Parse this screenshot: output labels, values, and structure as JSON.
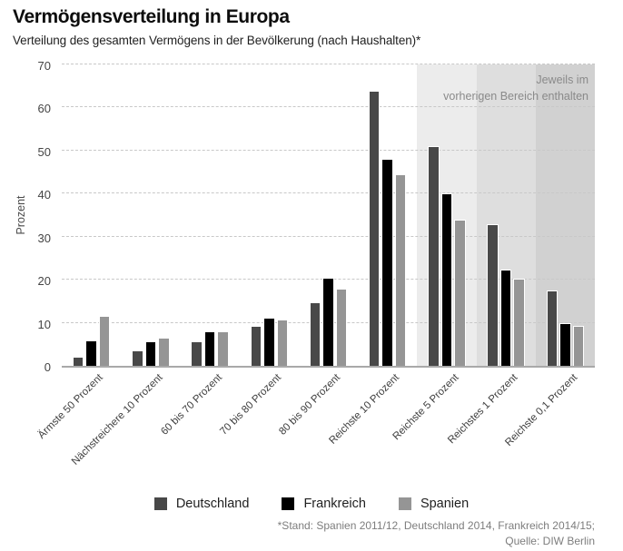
{
  "header": {
    "title": "Vermögensverteilung in Europa",
    "subtitle": "Verteilung des gesamten Vermögens in der Bevölkerung (nach Haushalten)*"
  },
  "chart_data": {
    "type": "bar",
    "title": "Vermögensverteilung in Europa",
    "subtitle": "Verteilung des gesamten Vermögens in der Bevölkerung (nach Haushalten)*",
    "ylabel": "Prozent",
    "xlabel": "",
    "ylim": [
      0,
      70
    ],
    "yticks": [
      0,
      10,
      20,
      30,
      40,
      50,
      60,
      70
    ],
    "grid": "dashed-horizontal",
    "legend_position": "bottom",
    "categories": [
      "Ärmste 50 Prozent",
      "Nächstreichere 10 Prozent",
      "60 bis 70 Prozent",
      "70 bis 80 Prozent",
      "80 bis 90 Prozent",
      "Reichste 10 Prozent",
      "Reichste 5 Prozent",
      "Reichstes 1 Prozent",
      "Reichste 0,1 Prozent"
    ],
    "series": [
      {
        "name": "Deutschland",
        "color": "#484848",
        "values": [
          2.2,
          3.5,
          5.8,
          9.3,
          14.8,
          63.8,
          51.0,
          33.0,
          17.4
        ]
      },
      {
        "name": "Frankreich",
        "color": "#000000",
        "values": [
          6.0,
          5.7,
          8.0,
          11.2,
          20.5,
          48.0,
          40.0,
          22.3,
          10.0
        ]
      },
      {
        "name": "Spanien",
        "color": "#959595",
        "values": [
          11.5,
          6.5,
          8.1,
          10.8,
          18.0,
          44.5,
          34.0,
          20.2,
          9.3
        ]
      }
    ],
    "highlight_bands": [
      {
        "category_index": 6,
        "color": "#ececec"
      },
      {
        "category_index": 7,
        "color": "#dedede"
      },
      {
        "category_index": 8,
        "color": "#d1d1d1"
      }
    ],
    "annotation_lines": [
      "Jeweils im",
      "vorherigen Bereich enthalten"
    ]
  },
  "footer": {
    "line1": "*Stand: Spanien 2011/12, Deutschland 2014, Frankreich 2014/15;",
    "line2": "Quelle: DIW Berlin"
  }
}
